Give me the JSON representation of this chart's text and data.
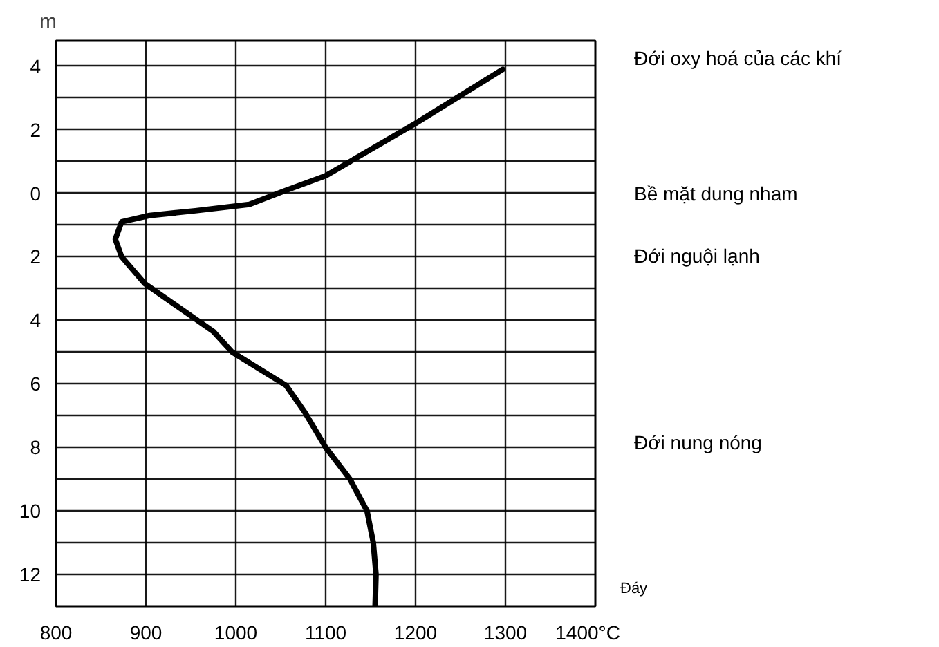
{
  "chart_data": {
    "type": "line",
    "ylabel": "m",
    "x": [
      1297,
      1200,
      1100,
      1054,
      1015,
      955,
      904,
      873,
      866,
      873,
      899,
      975,
      996,
      1056,
      1077,
      1100,
      1127,
      1146,
      1153,
      1156,
      1155
    ],
    "series": [
      {
        "color": "#000000",
        "values": [
          3.9,
          2.2,
          0.55,
          0.07,
          -0.35,
          -0.55,
          -0.7,
          -0.9,
          -1.45,
          -2,
          -2.85,
          -4.35,
          -5,
          -6.05,
          -6.9,
          -8,
          -9,
          -10,
          -11,
          -12,
          -13
        ]
      }
    ],
    "xlim": [
      800,
      1400
    ],
    "ylim": [
      -13,
      4.8
    ],
    "xticks": [
      800,
      900,
      1000,
      1100,
      1200,
      1300,
      {
        "value": 1400,
        "label": "1400°C"
      }
    ],
    "yticks": [
      {
        "value": 4,
        "label": "4"
      },
      {
        "value": 3,
        "label": null
      },
      {
        "value": 2,
        "label": "2"
      },
      {
        "value": 1,
        "label": null
      },
      {
        "value": 0,
        "label": "0"
      },
      {
        "value": -1,
        "label": null
      },
      {
        "value": -2,
        "label": "2"
      },
      {
        "value": -3,
        "label": null
      },
      {
        "value": -4,
        "label": "4"
      },
      {
        "value": -5,
        "label": null
      },
      {
        "value": -6,
        "label": "6"
      },
      {
        "value": -7,
        "label": null
      },
      {
        "value": -8,
        "label": "8"
      },
      {
        "value": -9,
        "label": null
      },
      {
        "value": -10,
        "label": "10"
      },
      {
        "value": -11,
        "label": null
      },
      {
        "value": -12,
        "label": "12"
      }
    ],
    "grid": true,
    "marker": "none",
    "line_style": "solid",
    "annotations": [
      "Đới oxy hoá của các khí",
      "Bề mặt dung nham",
      "Đới nguội lạnh",
      "Đới nung nóng",
      "Đáy"
    ]
  }
}
